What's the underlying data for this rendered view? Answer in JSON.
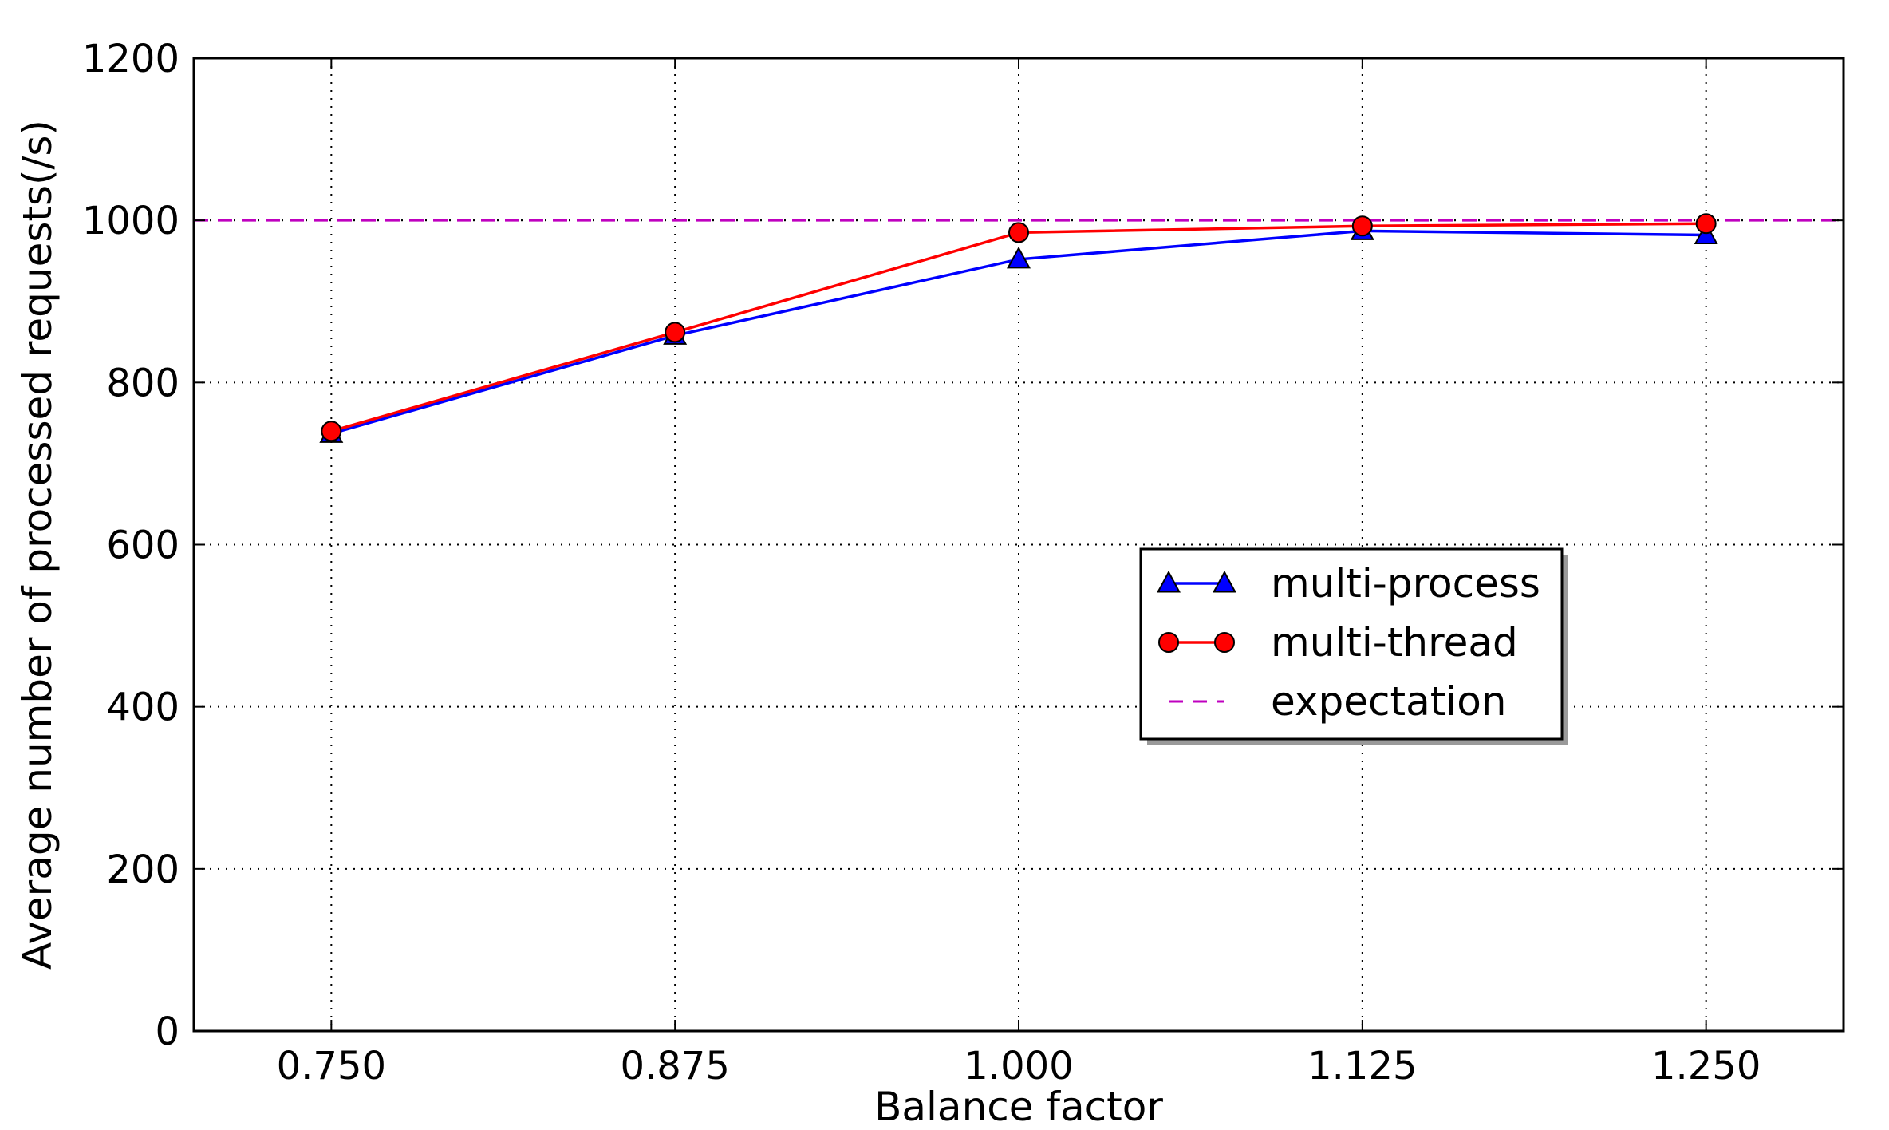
{
  "chart_data": {
    "type": "line",
    "title": "",
    "xlabel": "Balance factor",
    "ylabel": "Average number of processed requests(/s)",
    "x": [
      0.75,
      0.875,
      1.0,
      1.125,
      1.25
    ],
    "x_tick_labels": [
      "0.750",
      "0.875",
      "1.000",
      "1.125",
      "1.250"
    ],
    "y_ticks": [
      0,
      200,
      400,
      600,
      800,
      1000,
      1200
    ],
    "xlim": [
      0.7,
      1.3
    ],
    "ylim": [
      0,
      1200
    ],
    "grid": true,
    "legend_position": "center-right",
    "series": [
      {
        "name": "multi-process",
        "marker": "triangle",
        "color": "#0000ff",
        "values": [
          737,
          858,
          952,
          987,
          982
        ]
      },
      {
        "name": "multi-thread",
        "marker": "circle",
        "color": "#ff0000",
        "values": [
          740,
          862,
          985,
          993,
          996
        ]
      },
      {
        "name": "expectation",
        "marker": "none",
        "style": "dashed",
        "color": "#bf00bf",
        "constant": 1000
      }
    ]
  }
}
